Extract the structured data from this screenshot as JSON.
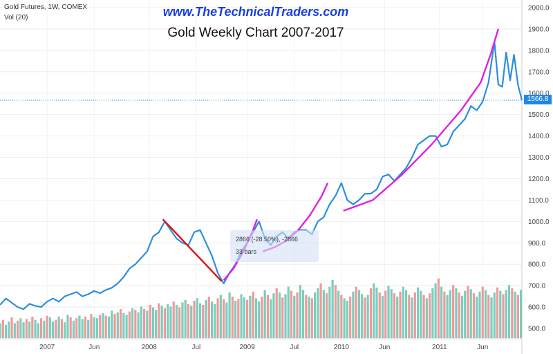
{
  "header": {
    "symbol": "Gold Futures, 1W, COMEX",
    "volume_label": "Vol (20)",
    "watermark": "www.TheTechnicalTraders.com",
    "title": "Gold Weekly Chart 2007-2017"
  },
  "measure_tool": {
    "line1": "2866 (-28.50%), -2866",
    "line2": "33 bars"
  },
  "last_price": "1566.8",
  "colors": {
    "price_line": "#2a8ee0",
    "trend_magenta": "#e020e0",
    "trend_red": "#e01010",
    "vol_up": "#7ccdbd",
    "vol_down": "#f19999",
    "last_price_line": "#1e88e5"
  },
  "chart_data": {
    "type": "line",
    "title": "Gold Weekly Chart 2007-2017",
    "y_axis": {
      "range": [
        450,
        2000
      ],
      "ticks": [
        "500.0",
        "600.0",
        "700.0",
        "800.0",
        "900.0",
        "1000.0",
        "1100.0",
        "1200.0",
        "1300.0",
        "1400.0",
        "1500.0",
        "1600.0",
        "1700.0",
        "1800.0",
        "1900.0",
        "2000.0"
      ],
      "tick_values": [
        500,
        600,
        700,
        800,
        900,
        1000,
        1100,
        1200,
        1300,
        1400,
        1500,
        1600,
        1700,
        1800,
        1900,
        2000
      ]
    },
    "x_axis": {
      "range": [
        0,
        266
      ],
      "labels": [
        {
          "x": 24,
          "label": "2007"
        },
        {
          "x": 48,
          "label": "Jun"
        },
        {
          "x": 76,
          "label": "2008"
        },
        {
          "x": 100,
          "label": "Jul"
        },
        {
          "x": 126,
          "label": "2009"
        },
        {
          "x": 150,
          "label": "Jul"
        },
        {
          "x": 174,
          "label": "2010"
        },
        {
          "x": 196,
          "label": "Jun"
        },
        {
          "x": 224,
          "label": "2011"
        },
        {
          "x": 246,
          "label": "Jun"
        }
      ]
    },
    "price_series": {
      "x": [
        0,
        3,
        6,
        9,
        12,
        15,
        18,
        21,
        24,
        27,
        30,
        33,
        36,
        39,
        42,
        45,
        48,
        51,
        54,
        57,
        60,
        63,
        66,
        69,
        72,
        75,
        78,
        81,
        84,
        87,
        90,
        93,
        96,
        99,
        102,
        105,
        108,
        111,
        114,
        117,
        120,
        123,
        126,
        129,
        132,
        135,
        138,
        141,
        144,
        147,
        150,
        153,
        156,
        159,
        162,
        165,
        168,
        171,
        174,
        177,
        180,
        183,
        186,
        189,
        192,
        195,
        198,
        201,
        204,
        207,
        210,
        213,
        216,
        219,
        222,
        225,
        228,
        231,
        234,
        237,
        240,
        243,
        246,
        249,
        252,
        254,
        256,
        258,
        260,
        262,
        264,
        266
      ],
      "values": [
        610,
        640,
        620,
        600,
        590,
        615,
        605,
        600,
        625,
        640,
        625,
        650,
        660,
        670,
        650,
        660,
        675,
        665,
        680,
        690,
        710,
        740,
        780,
        800,
        830,
        860,
        930,
        950,
        1000,
        960,
        920,
        900,
        890,
        950,
        960,
        900,
        840,
        760,
        710,
        760,
        800,
        860,
        900,
        950,
        1000,
        920,
        890,
        930,
        950,
        920,
        950,
        960,
        960,
        940,
        1000,
        1020,
        1080,
        1120,
        1180,
        1100,
        1080,
        1100,
        1130,
        1130,
        1150,
        1210,
        1220,
        1190,
        1220,
        1250,
        1300,
        1360,
        1380,
        1400,
        1400,
        1350,
        1360,
        1420,
        1450,
        1480,
        1540,
        1520,
        1560,
        1650,
        1840,
        1640,
        1630,
        1790,
        1660,
        1780,
        1640,
        1566.8
      ]
    },
    "trendlines": [
      {
        "name": "red-decline",
        "color": "#e01010",
        "x": [
          83,
          113
        ],
        "values": [
          1010,
          720
        ]
      },
      {
        "name": "magenta-2008-rally",
        "color": "#e020e0",
        "x": [
          114,
          119,
          124,
          129,
          131
        ],
        "values": [
          725,
          780,
          860,
          960,
          1010
        ]
      },
      {
        "name": "magenta-2009-rally",
        "color": "#e020e0",
        "x": [
          134,
          140,
          146,
          152,
          158,
          164,
          167
        ],
        "values": [
          860,
          880,
          910,
          960,
          1030,
          1120,
          1180
        ]
      },
      {
        "name": "magenta-2010-2011-rally",
        "color": "#e020e0",
        "x": [
          175,
          190,
          205,
          220,
          235,
          245,
          250,
          254
        ],
        "values": [
          1050,
          1100,
          1220,
          1360,
          1520,
          1650,
          1780,
          1900
        ]
      }
    ],
    "volume_series": {
      "scale_max": 100,
      "x_start": 0,
      "x_step": 1.5,
      "values": [
        18,
        22,
        16,
        20,
        25,
        18,
        21,
        24,
        19,
        23,
        20,
        26,
        22,
        18,
        24,
        21,
        27,
        25,
        20,
        22,
        26,
        23,
        19,
        28,
        25,
        21,
        24,
        27,
        23,
        26,
        22,
        29,
        25,
        24,
        28,
        30,
        27,
        26,
        33,
        29,
        31,
        35,
        30,
        28,
        32,
        36,
        34,
        31,
        38,
        35,
        33,
        40,
        37,
        34,
        42,
        39,
        36,
        41,
        38,
        44,
        40,
        37,
        43,
        46,
        41,
        39,
        45,
        48,
        42,
        40,
        46,
        50,
        44,
        41,
        48,
        52,
        47,
        43,
        55,
        50,
        45,
        47,
        53,
        49,
        46,
        51,
        56,
        48,
        44,
        50,
        58,
        52,
        47,
        54,
        60,
        55,
        49,
        53,
        62,
        57,
        51,
        55,
        64,
        58,
        52,
        50,
        48,
        55,
        60,
        66,
        58,
        54,
        62,
        70,
        64,
        57,
        52,
        48,
        45,
        50,
        56,
        62,
        58,
        53,
        49,
        52,
        60,
        66,
        61,
        55,
        51,
        57,
        63,
        59,
        54,
        50,
        56,
        62,
        58,
        52,
        49,
        55,
        61,
        57,
        52,
        48,
        54,
        60,
        66,
        72,
        62,
        56,
        52,
        58,
        64,
        60,
        55,
        51,
        57,
        63,
        59,
        54,
        50,
        56,
        62,
        58,
        52,
        49,
        55,
        61,
        57,
        53,
        58,
        64,
        60,
        56,
        52,
        58,
        63,
        59,
        55,
        51,
        57,
        62,
        58,
        54,
        50,
        56,
        61,
        57,
        53,
        59,
        64,
        60,
        56,
        52,
        58,
        63,
        59,
        55,
        61,
        66,
        62,
        58,
        54,
        60,
        65,
        61,
        57,
        53,
        59,
        64,
        68,
        63,
        58,
        54,
        60,
        66,
        62,
        58,
        55,
        61,
        67,
        63,
        59,
        56,
        62,
        68,
        64,
        60,
        57,
        63,
        69,
        65,
        61,
        58,
        64,
        70,
        74,
        68,
        63,
        60,
        66,
        72,
        80,
        75,
        70,
        95,
        68,
        62,
        78,
        72,
        66,
        58,
        55,
        60,
        57,
        54,
        56,
        52,
        50,
        48,
        70,
        55,
        50
      ],
      "up_pattern": [
        1,
        0,
        1,
        1,
        0,
        1,
        0,
        1,
        1,
        0
      ]
    }
  }
}
